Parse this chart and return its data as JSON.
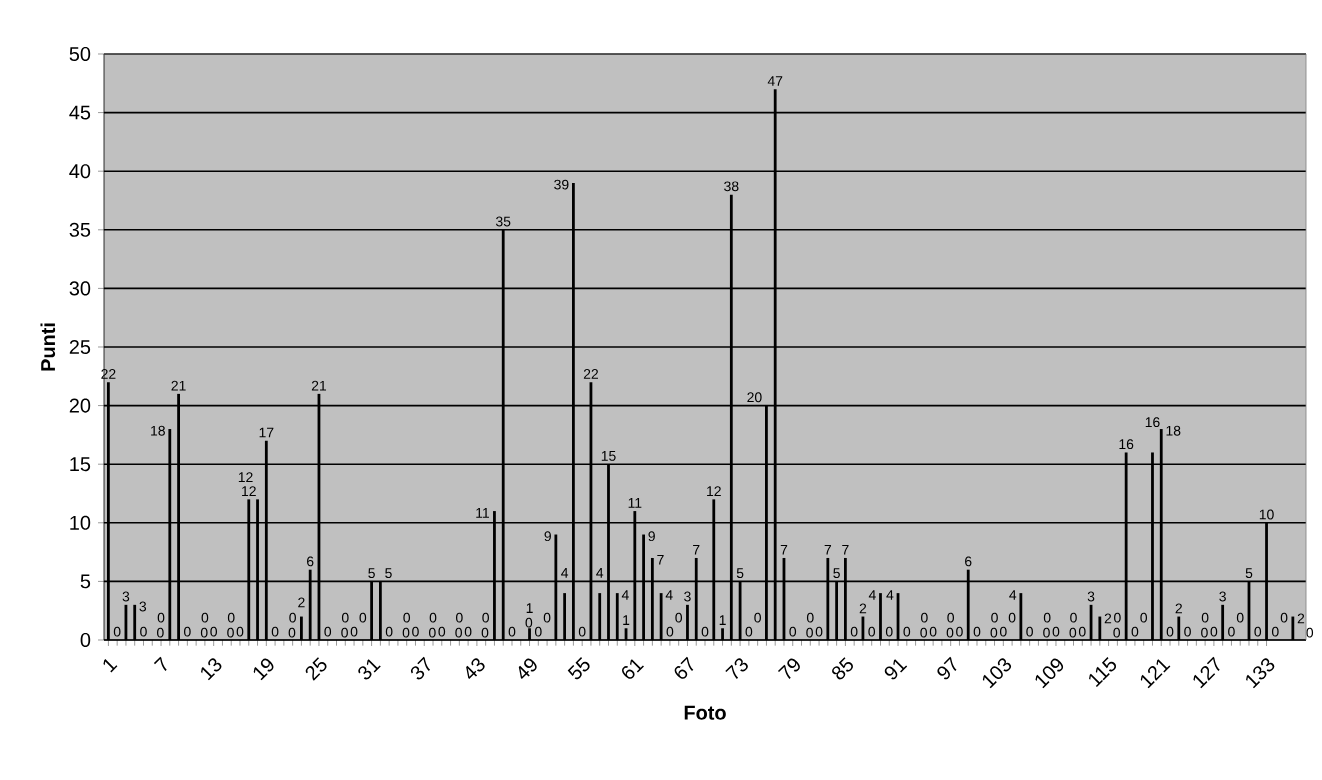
{
  "chart_data": {
    "type": "bar",
    "xlabel": "Foto",
    "ylabel": "Punti",
    "color": "#000000",
    "grid": "y",
    "data_labels": true,
    "categories": [
      "1",
      null,
      null,
      null,
      null,
      null,
      "7",
      null,
      null,
      null,
      null,
      null,
      "13",
      null,
      null,
      null,
      null,
      null,
      "19",
      null,
      null,
      null,
      null,
      null,
      "25",
      null,
      null,
      null,
      null,
      null,
      "31",
      null,
      null,
      null,
      null,
      null,
      "37",
      null,
      null,
      null,
      null,
      null,
      "43",
      null,
      null,
      null,
      null,
      null,
      "49",
      null,
      null,
      null,
      null,
      null,
      "55",
      null,
      null,
      null,
      null,
      null,
      "61",
      null,
      null,
      null,
      null,
      null,
      "67",
      null,
      null,
      null,
      null,
      null,
      "73",
      null,
      null,
      null,
      null,
      null,
      "79",
      null,
      null,
      null,
      null,
      null,
      "85",
      null,
      null,
      null,
      null,
      null,
      "91",
      null,
      null,
      null,
      null,
      null,
      "97",
      null,
      null,
      null,
      null,
      null,
      "103",
      null,
      null,
      null,
      null,
      null,
      "109",
      null,
      null,
      null,
      null,
      null,
      "115",
      null,
      null,
      null,
      null,
      null,
      "121",
      null,
      null,
      null,
      null,
      null,
      "127",
      null,
      null,
      null,
      null,
      null,
      "133",
      null,
      null,
      null,
      null
    ],
    "values": [
      22,
      0,
      3,
      3,
      0,
      0,
      0,
      18,
      21,
      0,
      0,
      0,
      0,
      0,
      0,
      0,
      12,
      12,
      17,
      0,
      0,
      0,
      2,
      6,
      21,
      0,
      0,
      0,
      0,
      0,
      5,
      5,
      0,
      0,
      0,
      0,
      0,
      0,
      0,
      0,
      0,
      0,
      0,
      0,
      11,
      35,
      0,
      0,
      1,
      0,
      0,
      9,
      4,
      39,
      0,
      22,
      4,
      15,
      4,
      1,
      11,
      9,
      7,
      4,
      0,
      0,
      3,
      7,
      0,
      12,
      1,
      38,
      5,
      0,
      0,
      20,
      47,
      7,
      0,
      0,
      0,
      0,
      7,
      5,
      7,
      0,
      2,
      0,
      4,
      0,
      4,
      0,
      0,
      0,
      0,
      0,
      0,
      0,
      6,
      0,
      0,
      0,
      0,
      0,
      4,
      0,
      0,
      0,
      0,
      0,
      0,
      0,
      3,
      2,
      0,
      0,
      16,
      0,
      0,
      16,
      18,
      0,
      2,
      0,
      0,
      0,
      0,
      3,
      0,
      0,
      5,
      0,
      10,
      0,
      0,
      2,
      0
    ],
    "ylim": [
      0,
      50
    ],
    "yticks": [
      0,
      5,
      10,
      15,
      20,
      25,
      30,
      35,
      40,
      45,
      50
    ]
  }
}
